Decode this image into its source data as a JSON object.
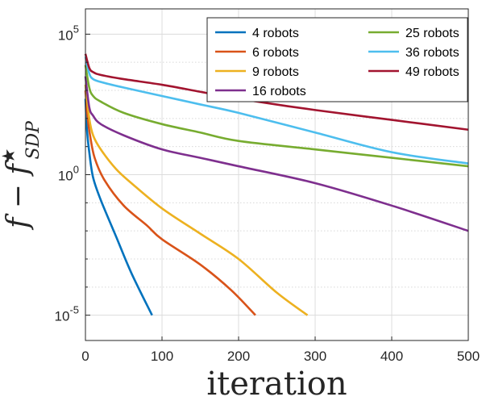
{
  "chart_data": {
    "type": "line",
    "xlabel": "iteration",
    "ylabel": {
      "main": "f − f",
      "sup": "★",
      "sub": "SDP"
    },
    "xlim": [
      0,
      500
    ],
    "ylim_log10": [
      -5.9,
      5.9
    ],
    "yscale": "log",
    "grid": true,
    "legend_position": "top-right",
    "x_ticks": [
      "0",
      "100",
      "200",
      "300",
      "400",
      "500"
    ],
    "y_ticks": [
      {
        "base": "10",
        "exp": "5",
        "value": 5
      },
      {
        "base": "10",
        "exp": "0",
        "value": 0
      },
      {
        "base": "10",
        "exp": "-5",
        "value": -5
      }
    ],
    "series": [
      {
        "name": "4 robots",
        "color": "#0072BD",
        "points": [
          [
            0,
            2.7
          ],
          [
            2,
            1.6
          ],
          [
            5,
            0.8
          ],
          [
            10,
            -0.1
          ],
          [
            20,
            -0.9
          ],
          [
            40,
            -2.2
          ],
          [
            60,
            -3.5
          ],
          [
            87,
            -5.0
          ]
        ]
      },
      {
        "name": "6 robots",
        "color": "#D95319",
        "points": [
          [
            0,
            3.0
          ],
          [
            3,
            2.0
          ],
          [
            6,
            1.4
          ],
          [
            12,
            0.6
          ],
          [
            25,
            -0.2
          ],
          [
            50,
            -1.1
          ],
          [
            80,
            -1.8
          ],
          [
            100,
            -2.3
          ],
          [
            150,
            -3.2
          ],
          [
            190,
            -4.1
          ],
          [
            222,
            -5.0
          ]
        ]
      },
      {
        "name": "9 robots",
        "color": "#EDB120",
        "points": [
          [
            0,
            3.2
          ],
          [
            5,
            2.0
          ],
          [
            10,
            1.4
          ],
          [
            20,
            0.9
          ],
          [
            40,
            0.2
          ],
          [
            60,
            -0.3
          ],
          [
            100,
            -1.2
          ],
          [
            150,
            -2.1
          ],
          [
            200,
            -3.0
          ],
          [
            250,
            -4.2
          ],
          [
            290,
            -5.0
          ]
        ]
      },
      {
        "name": "16 robots",
        "color": "#7E2F8E",
        "points": [
          [
            0,
            3.5
          ],
          [
            5,
            2.4
          ],
          [
            10,
            2.1
          ],
          [
            20,
            1.8
          ],
          [
            50,
            1.4
          ],
          [
            100,
            0.9
          ],
          [
            150,
            0.6
          ],
          [
            200,
            0.3
          ],
          [
            300,
            -0.3
          ],
          [
            400,
            -1.1
          ],
          [
            500,
            -2.0
          ]
        ]
      },
      {
        "name": "25 robots",
        "color": "#77AC30",
        "points": [
          [
            0,
            3.9
          ],
          [
            5,
            3.1
          ],
          [
            10,
            2.8
          ],
          [
            20,
            2.6
          ],
          [
            50,
            2.2
          ],
          [
            100,
            1.8
          ],
          [
            150,
            1.5
          ],
          [
            200,
            1.2
          ],
          [
            300,
            0.9
          ],
          [
            400,
            0.6
          ],
          [
            500,
            0.3
          ]
        ]
      },
      {
        "name": "36 robots",
        "color": "#4DBEEE",
        "points": [
          [
            0,
            4.2
          ],
          [
            5,
            3.6
          ],
          [
            10,
            3.4
          ],
          [
            20,
            3.3
          ],
          [
            50,
            3.1
          ],
          [
            100,
            2.8
          ],
          [
            150,
            2.5
          ],
          [
            200,
            2.2
          ],
          [
            300,
            1.5
          ],
          [
            400,
            0.8
          ],
          [
            500,
            0.4
          ]
        ]
      },
      {
        "name": "49 robots",
        "color": "#A2142F",
        "points": [
          [
            0,
            4.3
          ],
          [
            5,
            3.8
          ],
          [
            10,
            3.65
          ],
          [
            20,
            3.55
          ],
          [
            50,
            3.4
          ],
          [
            100,
            3.2
          ],
          [
            150,
            2.95
          ],
          [
            200,
            2.7
          ],
          [
            300,
            2.3
          ],
          [
            400,
            1.95
          ],
          [
            500,
            1.6
          ]
        ]
      }
    ]
  }
}
